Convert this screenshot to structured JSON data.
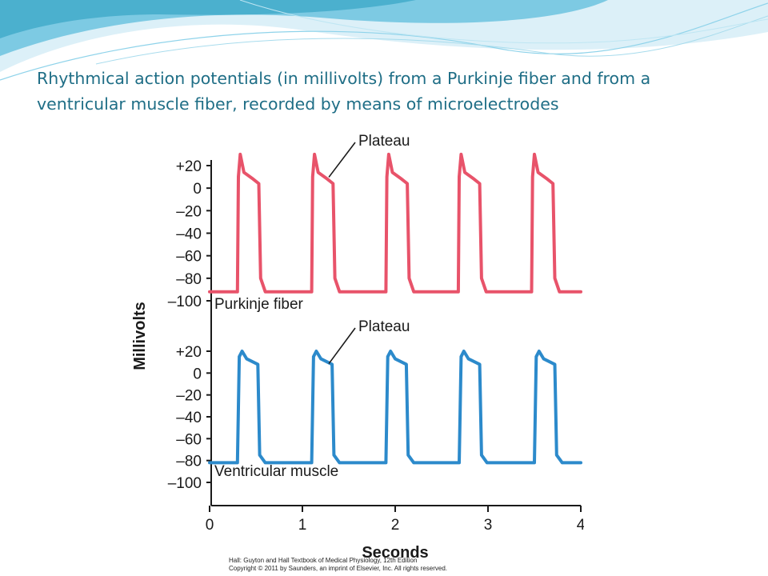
{
  "slide": {
    "title_line1": "Rhythmical action potentials (in millivolts) from a Purkinje fiber and from a",
    "title_line2": "ventricular muscle fiber, recorded by means of microelectrodes",
    "credit_line1": "Hall: Guyton and Hall Textbook of Medical Physiology, 12th Edition",
    "credit_line2": "Copyright © 2011 by Saunders, an imprint of Elsevier, Inc. All rights reserved."
  },
  "colors": {
    "title": "#1f6e86",
    "purkinje": "#e8536a",
    "ventricular": "#2c8acb",
    "axis": "#1a1a1a",
    "banner_dark": "#5ab9d9",
    "banner_light": "#bfe7f5"
  },
  "chart_data": {
    "type": "line",
    "ylabel": "Millivolts",
    "xlabel": "Seconds",
    "x_ticks": [
      "0",
      "1",
      "2",
      "3",
      "4"
    ],
    "xlim": [
      0,
      4
    ],
    "panels": [
      {
        "name": "Purkinje fiber",
        "annotation": "Plateau",
        "y_ticks": [
          "+20",
          "0",
          "–20",
          "–40",
          "–60",
          "–80",
          "–100"
        ],
        "ylim": [
          -100,
          20
        ],
        "beats_at_seconds": [
          0.33,
          1.13,
          1.93,
          2.71,
          3.5
        ],
        "series": {
          "name": "Purkinje fiber",
          "x": [
            0.0,
            0.3,
            0.31,
            0.33,
            0.37,
            0.47,
            0.53,
            0.55,
            0.6,
            1.1,
            1.11,
            1.13,
            1.17,
            1.27,
            1.33,
            1.35,
            1.4,
            1.9,
            1.91,
            1.93,
            1.97,
            2.07,
            2.13,
            2.15,
            2.2,
            2.68,
            2.69,
            2.71,
            2.75,
            2.85,
            2.91,
            2.93,
            2.98,
            3.47,
            3.48,
            3.5,
            3.54,
            3.64,
            3.7,
            3.72,
            3.77,
            4.0
          ],
          "y": [
            -92,
            -92,
            10,
            30,
            14,
            8,
            4,
            -80,
            -92,
            -92,
            10,
            30,
            14,
            8,
            4,
            -80,
            -92,
            -92,
            10,
            30,
            14,
            8,
            4,
            -80,
            -92,
            -92,
            10,
            30,
            14,
            8,
            4,
            -80,
            -92,
            -92,
            10,
            30,
            14,
            8,
            4,
            -80,
            -92,
            -92
          ]
        }
      },
      {
        "name": "Ventricular muscle",
        "annotation": "Plateau",
        "y_ticks": [
          "+20",
          "0",
          "–20",
          "–40",
          "–60",
          "–80",
          "–100"
        ],
        "ylim": [
          -100,
          20
        ],
        "beats_at_seconds": [
          0.33,
          1.13,
          1.93,
          2.72,
          3.53
        ],
        "series": {
          "name": "Ventricular muscle",
          "x": [
            0.0,
            0.3,
            0.32,
            0.35,
            0.4,
            0.52,
            0.54,
            0.6,
            1.1,
            1.12,
            1.15,
            1.2,
            1.32,
            1.34,
            1.4,
            1.9,
            1.92,
            1.95,
            2.0,
            2.12,
            2.14,
            2.2,
            2.69,
            2.71,
            2.74,
            2.79,
            2.91,
            2.93,
            2.99,
            3.5,
            3.52,
            3.55,
            3.6,
            3.72,
            3.74,
            3.8,
            4.0
          ],
          "y": [
            -82,
            -82,
            15,
            20,
            13,
            8,
            -75,
            -82,
            -82,
            15,
            20,
            13,
            8,
            -75,
            -82,
            -82,
            15,
            20,
            13,
            8,
            -75,
            -82,
            -82,
            15,
            20,
            13,
            8,
            -75,
            -82,
            -82,
            15,
            20,
            13,
            8,
            -75,
            -82,
            -82
          ]
        }
      }
    ],
    "grid": false,
    "legend": "none"
  }
}
